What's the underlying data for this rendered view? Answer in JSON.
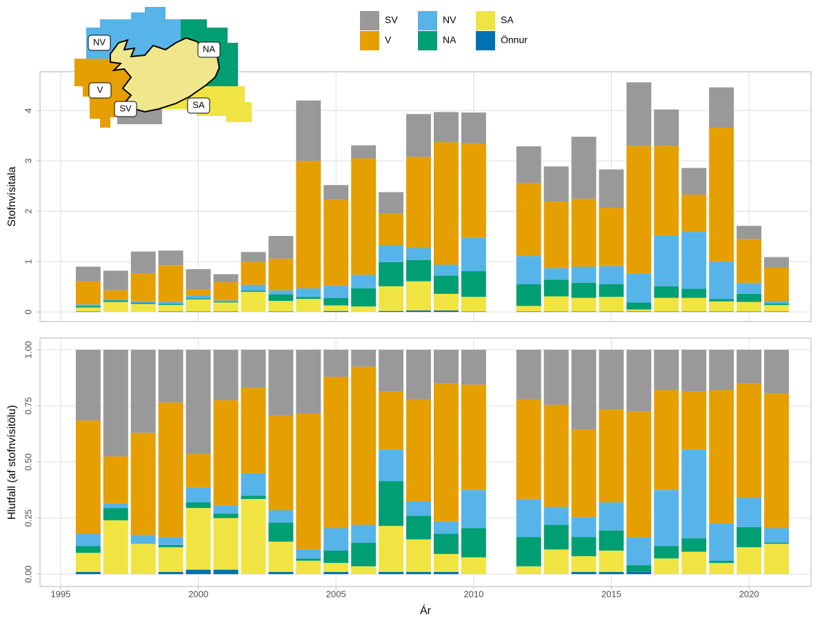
{
  "chart_data": [
    {
      "type": "bar",
      "stacked": true,
      "y_label": "Stofnvísitala",
      "x": [
        1996,
        1997,
        1998,
        1999,
        2000,
        2001,
        2002,
        2003,
        2004,
        2005,
        2006,
        2007,
        2008,
        2009,
        2010,
        2012,
        2013,
        2014,
        2015,
        2016,
        2017,
        2018,
        2019,
        2020,
        2021
      ],
      "xlim": [
        1994.25,
        2022.25
      ],
      "xticks": [
        1995,
        2000,
        2005,
        2010,
        2015,
        2020
      ],
      "ylim": [
        -0.19,
        4.77
      ],
      "yticks": [
        0,
        1,
        2,
        3,
        4
      ],
      "grid": true,
      "series": [
        {
          "name": "Önnur",
          "color": "#0072B2",
          "values": [
            0.01,
            0,
            0,
            0.01,
            0.01,
            0.01,
            0,
            0.01,
            0,
            0.02,
            0,
            0.02,
            0.03,
            0.03,
            0.01,
            0.01,
            0.01,
            0.01,
            0.01,
            0.01,
            0.01,
            0.01,
            0.01,
            0.01,
            0.01
          ]
        },
        {
          "name": "SA",
          "color": "#F0E442",
          "values": [
            0.08,
            0.2,
            0.16,
            0.13,
            0.24,
            0.18,
            0.4,
            0.21,
            0.26,
            0.11,
            0.11,
            0.49,
            0.58,
            0.33,
            0.29,
            0.11,
            0.3,
            0.27,
            0.29,
            0.04,
            0.27,
            0.27,
            0.2,
            0.19,
            0.13
          ]
        },
        {
          "name": "NA",
          "color": "#009E73",
          "values": [
            0.03,
            0.03,
            0.02,
            0.02,
            0.02,
            0.02,
            0.02,
            0.13,
            0.04,
            0.15,
            0.36,
            0.48,
            0.42,
            0.36,
            0.51,
            0.43,
            0.33,
            0.3,
            0.25,
            0.14,
            0.23,
            0.18,
            0.05,
            0.16,
            0.03
          ]
        },
        {
          "name": "NV",
          "color": "#56B4E9",
          "values": [
            0.03,
            0.02,
            0.03,
            0.04,
            0.06,
            0.02,
            0.12,
            0.08,
            0.17,
            0.24,
            0.27,
            0.34,
            0.24,
            0.22,
            0.66,
            0.56,
            0.23,
            0.32,
            0.36,
            0.57,
            1.0,
            1.13,
            0.74,
            0.22,
            0.05
          ]
        },
        {
          "name": "V",
          "color": "#E69F00",
          "values": [
            0.46,
            0.18,
            0.55,
            0.73,
            0.12,
            0.36,
            0.45,
            0.63,
            2.53,
            1.71,
            2.31,
            0.62,
            1.81,
            2.43,
            1.87,
            1.45,
            1.32,
            1.35,
            1.16,
            2.54,
            1.79,
            0.74,
            2.66,
            0.87,
            0.66
          ]
        },
        {
          "name": "SV",
          "color": "#999999",
          "values": [
            0.29,
            0.39,
            0.44,
            0.29,
            0.4,
            0.16,
            0.2,
            0.45,
            1.2,
            0.29,
            0.26,
            0.43,
            0.85,
            0.6,
            0.62,
            0.73,
            0.7,
            1.23,
            0.76,
            1.26,
            0.72,
            0.53,
            0.8,
            0.26,
            0.21
          ]
        }
      ]
    },
    {
      "type": "bar",
      "stacked": true,
      "y_label": "Hlutfall (af stofnvísitölu)",
      "x_label": "Ár",
      "x": [
        1996,
        1997,
        1998,
        1999,
        2000,
        2001,
        2002,
        2003,
        2004,
        2005,
        2006,
        2007,
        2008,
        2009,
        2010,
        2012,
        2013,
        2014,
        2015,
        2016,
        2017,
        2018,
        2019,
        2020,
        2021
      ],
      "xlim": [
        1994.25,
        2022.25
      ],
      "xticks": [
        1995,
        2000,
        2005,
        2010,
        2015,
        2020
      ],
      "ylim": [
        -0.055,
        1.052
      ],
      "yticks": [
        {
          "value": 0,
          "label": "0.00"
        },
        {
          "value": 0.25,
          "label": "0.25"
        },
        {
          "value": 0.5,
          "label": "0.50"
        },
        {
          "value": 0.75,
          "label": "0.75"
        },
        {
          "value": 1,
          "label": "1.00"
        }
      ],
      "grid": true,
      "series": [
        {
          "name": "Önnur",
          "color": "#0072B2",
          "values": [
            0.01,
            0,
            0,
            0.01,
            0.02,
            0.02,
            0,
            0.01,
            0,
            0.01,
            0,
            0.01,
            0.01,
            0.01,
            0,
            0,
            0,
            0.01,
            0.01,
            0.01,
            0,
            0,
            0,
            0,
            0
          ]
        },
        {
          "name": "SA",
          "color": "#F0E442",
          "values": [
            0.085,
            0.24,
            0.135,
            0.11,
            0.275,
            0.23,
            0.335,
            0.135,
            0.06,
            0.04,
            0.035,
            0.205,
            0.145,
            0.08,
            0.075,
            0.035,
            0.11,
            0.07,
            0.095,
            0,
            0.07,
            0.1,
            0.05,
            0.12,
            0.135
          ]
        },
        {
          "name": "NA",
          "color": "#009E73",
          "values": [
            0.03,
            0.055,
            0,
            0.01,
            0.025,
            0.02,
            0.015,
            0.085,
            0.01,
            0.055,
            0.105,
            0.2,
            0.105,
            0.09,
            0.13,
            0.13,
            0.11,
            0.085,
            0.09,
            0.03,
            0.055,
            0.06,
            0.01,
            0.09,
            0.005
          ]
        },
        {
          "name": "NV",
          "color": "#56B4E9",
          "values": [
            0.055,
            0.02,
            0.04,
            0.035,
            0.065,
            0.035,
            0.1,
            0.055,
            0.04,
            0.1,
            0.08,
            0.14,
            0.065,
            0.055,
            0.17,
            0.17,
            0.08,
            0.09,
            0.125,
            0.125,
            0.25,
            0.395,
            0.165,
            0.13,
            0.065
          ]
        },
        {
          "name": "V",
          "color": "#E69F00",
          "values": [
            0.505,
            0.21,
            0.455,
            0.6,
            0.15,
            0.47,
            0.38,
            0.42,
            0.605,
            0.675,
            0.705,
            0.26,
            0.455,
            0.615,
            0.47,
            0.445,
            0.455,
            0.39,
            0.415,
            0.56,
            0.445,
            0.26,
            0.595,
            0.51,
            0.6
          ]
        },
        {
          "name": "SV",
          "color": "#999999",
          "values": [
            0.315,
            0.475,
            0.37,
            0.235,
            0.465,
            0.225,
            0.17,
            0.295,
            0.285,
            0.12,
            0.075,
            0.185,
            0.22,
            0.15,
            0.155,
            0.22,
            0.245,
            0.355,
            0.265,
            0.275,
            0.18,
            0.185,
            0.18,
            0.15,
            0.195
          ]
        }
      ]
    }
  ],
  "map": {
    "labels": [
      "NV",
      "NA",
      "V",
      "SV",
      "SA"
    ]
  }
}
